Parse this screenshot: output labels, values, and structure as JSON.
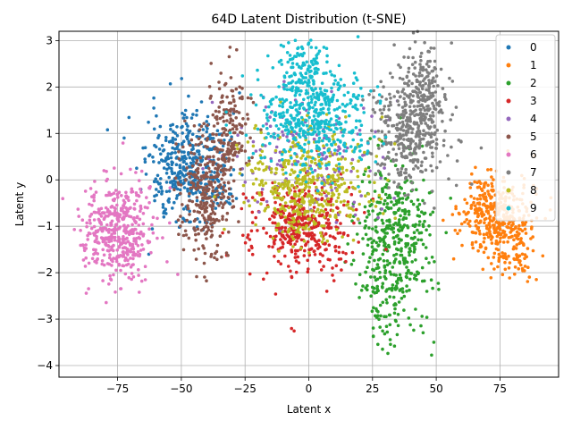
{
  "chart_data": {
    "type": "scatter",
    "title": "64D Latent Distribution (t-SNE)",
    "xlabel": "Latent x",
    "ylabel": "Latent y",
    "xlim": [
      -98,
      98
    ],
    "ylim": [
      -4.25,
      3.2
    ],
    "xticks": [
      -75,
      -50,
      -25,
      0,
      25,
      50,
      75
    ],
    "yticks": [
      -4,
      -3,
      -2,
      -1,
      0,
      1,
      2,
      3
    ],
    "grid": true,
    "legend_position": "top-right",
    "series": [
      {
        "name": "0",
        "color": "#1f77b4",
        "clusters": [
          {
            "cx": -47,
            "cy": 0.2,
            "sx": 8,
            "sy": 0.6,
            "n": 420
          }
        ]
      },
      {
        "name": "1",
        "color": "#ff7f0e",
        "clusters": [
          {
            "cx": 73,
            "cy": -0.8,
            "sx": 7,
            "sy": 0.45,
            "n": 380
          },
          {
            "cx": 82,
            "cy": -1.5,
            "sx": 3,
            "sy": 0.4,
            "n": 60
          }
        ]
      },
      {
        "name": "2",
        "color": "#2ca02c",
        "clusters": [
          {
            "cx": 34,
            "cy": -1.2,
            "sx": 7,
            "sy": 0.9,
            "n": 420
          },
          {
            "cx": 29,
            "cy": -2.8,
            "sx": 3,
            "sy": 0.5,
            "n": 40
          }
        ]
      },
      {
        "name": "3",
        "color": "#d62728",
        "clusters": [
          {
            "cx": -3,
            "cy": -1.0,
            "sx": 10,
            "sy": 0.55,
            "n": 400
          }
        ]
      },
      {
        "name": "4",
        "color": "#9467bd",
        "clusters": [
          {
            "cx": 0,
            "cy": 0.6,
            "sx": 14,
            "sy": 0.6,
            "n": 160
          }
        ]
      },
      {
        "name": "5",
        "color": "#8c564b",
        "clusters": [
          {
            "cx": -40,
            "cy": -0.3,
            "sx": 5,
            "sy": 0.7,
            "n": 300
          },
          {
            "cx": -31,
            "cy": 1.1,
            "sx": 4,
            "sy": 0.6,
            "n": 160
          }
        ]
      },
      {
        "name": "6",
        "color": "#e377c2",
        "clusters": [
          {
            "cx": -75,
            "cy": -1.1,
            "sx": 7,
            "sy": 0.5,
            "n": 450
          }
        ]
      },
      {
        "name": "7",
        "color": "#7f7f7f",
        "clusters": [
          {
            "cx": 40,
            "cy": 1.1,
            "sx": 7,
            "sy": 0.65,
            "n": 420
          },
          {
            "cx": 46,
            "cy": 2.1,
            "sx": 3,
            "sy": 0.4,
            "n": 90
          }
        ]
      },
      {
        "name": "8",
        "color": "#bcbd22",
        "clusters": [
          {
            "cx": 0,
            "cy": -0.1,
            "sx": 12,
            "sy": 0.6,
            "n": 450
          }
        ]
      },
      {
        "name": "9",
        "color": "#17becf",
        "clusters": [
          {
            "cx": 2,
            "cy": 1.4,
            "sx": 11,
            "sy": 0.6,
            "n": 480
          },
          {
            "cx": -2,
            "cy": 2.4,
            "sx": 4,
            "sy": 0.3,
            "n": 80
          }
        ]
      }
    ]
  }
}
